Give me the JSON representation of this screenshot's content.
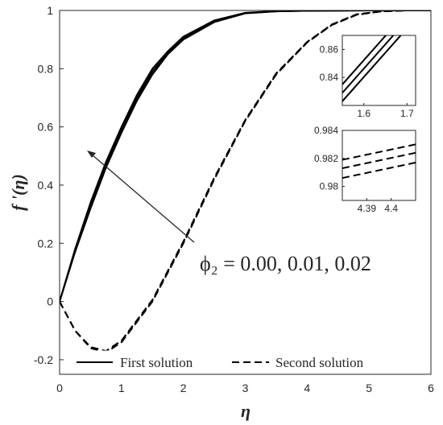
{
  "chart_data": {
    "type": "line",
    "xlabel": "η",
    "ylabel": "f '(η)",
    "xlim": [
      0,
      6
    ],
    "ylim": [
      -0.25,
      1
    ],
    "xticks": [
      "0",
      "1",
      "2",
      "3",
      "4",
      "5",
      "6"
    ],
    "yticks": [
      "-0.2",
      "0",
      "0.2",
      "0.4",
      "0.6",
      "0.8",
      "1"
    ],
    "grid": false,
    "legend_position": "bottom",
    "annotation": "ϕ₂ = 0.00, 0.01, 0.02",
    "series": [
      {
        "name": "First solution",
        "style": "solid",
        "variant": "ϕ₂ = 0.00",
        "x": [
          0,
          0.25,
          0.5,
          0.75,
          1.0,
          1.25,
          1.5,
          1.75,
          2.0,
          2.5,
          3.0,
          3.5,
          4.0,
          5.0,
          6.0
        ],
        "y": [
          0,
          0.17,
          0.32,
          0.46,
          0.58,
          0.69,
          0.78,
          0.85,
          0.9,
          0.96,
          0.99,
          0.997,
          0.999,
          1.0,
          1.0
        ]
      },
      {
        "name": "First solution",
        "style": "solid",
        "variant": "ϕ₂ = 0.01",
        "x": [
          0,
          0.25,
          0.5,
          0.75,
          1.0,
          1.25,
          1.5,
          1.75,
          2.0,
          2.5,
          3.0,
          3.5,
          4.0,
          5.0,
          6.0
        ],
        "y": [
          0,
          0.175,
          0.33,
          0.47,
          0.59,
          0.7,
          0.79,
          0.855,
          0.905,
          0.963,
          0.991,
          0.997,
          0.999,
          1.0,
          1.0
        ]
      },
      {
        "name": "First solution",
        "style": "solid",
        "variant": "ϕ₂ = 0.02",
        "x": [
          0,
          0.25,
          0.5,
          0.75,
          1.0,
          1.25,
          1.5,
          1.75,
          2.0,
          2.5,
          3.0,
          3.5,
          4.0,
          5.0,
          6.0
        ],
        "y": [
          0,
          0.18,
          0.34,
          0.48,
          0.6,
          0.71,
          0.8,
          0.86,
          0.91,
          0.966,
          0.992,
          0.998,
          0.999,
          1.0,
          1.0
        ]
      },
      {
        "name": "Second solution",
        "style": "dashed",
        "variant": "ϕ₂ = 0.00",
        "x": [
          0,
          0.25,
          0.5,
          0.75,
          1.0,
          1.5,
          2.0,
          2.5,
          3.0,
          3.5,
          4.0,
          4.4,
          4.8,
          5.2,
          5.6,
          6.0
        ],
        "y": [
          0,
          -0.1,
          -0.16,
          -0.175,
          -0.14,
          0.0,
          0.2,
          0.42,
          0.62,
          0.78,
          0.89,
          0.95,
          0.985,
          0.997,
          1.0,
          1.0
        ]
      },
      {
        "name": "Second solution",
        "style": "dashed",
        "variant": "ϕ₂ = 0.01",
        "x": [
          0,
          0.25,
          0.5,
          0.75,
          1.0,
          1.5,
          2.0,
          2.5,
          3.0,
          3.5,
          4.0,
          4.4,
          4.8,
          5.2,
          5.6,
          6.0
        ],
        "y": [
          0,
          -0.1,
          -0.158,
          -0.172,
          -0.137,
          0.003,
          0.203,
          0.423,
          0.622,
          0.782,
          0.891,
          0.951,
          0.986,
          0.997,
          1.0,
          1.0
        ]
      },
      {
        "name": "Second solution",
        "style": "dashed",
        "variant": "ϕ₂ = 0.02",
        "x": [
          0,
          0.25,
          0.5,
          0.75,
          1.0,
          1.5,
          2.0,
          2.5,
          3.0,
          3.5,
          4.0,
          4.4,
          4.8,
          5.2,
          5.6,
          6.0
        ],
        "y": [
          0,
          -0.1,
          -0.156,
          -0.17,
          -0.134,
          0.006,
          0.206,
          0.426,
          0.624,
          0.784,
          0.892,
          0.952,
          0.987,
          0.997,
          1.0,
          1.0
        ]
      }
    ],
    "insets": [
      {
        "xlim": [
          1.55,
          1.72
        ],
        "ylim": [
          0.82,
          0.87
        ],
        "xticks": [
          "1.6",
          "1.7"
        ],
        "yticks": [
          "0.84",
          "0.86"
        ],
        "style": "solid",
        "lines": [
          {
            "x": [
              1.55,
              1.72
            ],
            "y": [
              0.835,
              0.894
            ]
          },
          {
            "x": [
              1.55,
              1.72
            ],
            "y": [
              0.829,
              0.888
            ]
          },
          {
            "x": [
              1.55,
              1.72
            ],
            "y": [
              0.823,
              0.882
            ]
          }
        ]
      },
      {
        "xlim": [
          4.38,
          4.41
        ],
        "ylim": [
          0.979,
          0.984
        ],
        "xticks": [
          "4.39",
          "4.4"
        ],
        "yticks": [
          "0.98",
          "0.982",
          "0.984"
        ],
        "style": "dashed",
        "lines": [
          {
            "x": [
              4.38,
              4.41
            ],
            "y": [
              0.9819,
              0.983
            ]
          },
          {
            "x": [
              4.38,
              4.41
            ],
            "y": [
              0.9813,
              0.9824
            ]
          },
          {
            "x": [
              4.38,
              4.41
            ],
            "y": [
              0.9806,
              0.9817
            ]
          }
        ]
      }
    ]
  }
}
